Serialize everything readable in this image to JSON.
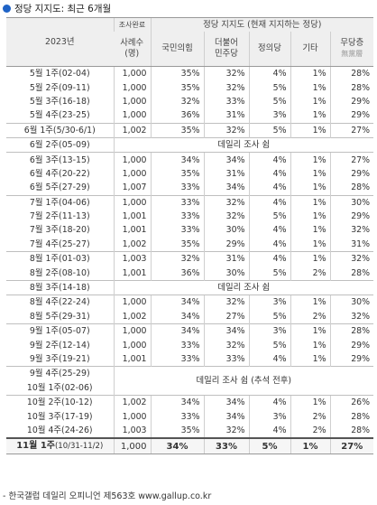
{
  "title": "정당 지지도: 최근 6개월",
  "header": {
    "year": "2023년",
    "sample_top": "조사완료",
    "sample_main": "사례수",
    "sample_unit": "(명)",
    "group": "정당 지지도 (현재 지지하는 정당)",
    "cols": [
      "국민의힘",
      "더불어\n민주당",
      "정의당",
      "기타",
      "무당층"
    ],
    "no_party_hanja": "無黨層"
  },
  "rows": [
    {
      "label": "5월 1주(02-04)",
      "n": "1,000",
      "ppp": "35%",
      "dp": "32%",
      "jp": "4%",
      "etc": "1%",
      "none": "28%",
      "bt": true
    },
    {
      "label": "5월 2주(09-11)",
      "n": "1,000",
      "ppp": "35%",
      "dp": "32%",
      "jp": "5%",
      "etc": "1%",
      "none": "28%"
    },
    {
      "label": "5월 3주(16-18)",
      "n": "1,000",
      "ppp": "32%",
      "dp": "33%",
      "jp": "5%",
      "etc": "1%",
      "none": "29%"
    },
    {
      "label": "5월 4주(23-25)",
      "n": "1,000",
      "ppp": "36%",
      "dp": "31%",
      "jp": "3%",
      "etc": "1%",
      "none": "29%"
    },
    {
      "label": "6월 1주(5/30-6/1)",
      "n": "1,002",
      "ppp": "35%",
      "dp": "32%",
      "jp": "5%",
      "etc": "1%",
      "none": "27%",
      "bt": true
    },
    {
      "label": "6월 2주(05-09)",
      "span": "데일리 조사 쉼",
      "bt": true
    },
    {
      "label": "6월 3주(13-15)",
      "n": "1,000",
      "ppp": "34%",
      "dp": "34%",
      "jp": "4%",
      "etc": "1%",
      "none": "27%",
      "bt": true
    },
    {
      "label": "6월 4주(20-22)",
      "n": "1,000",
      "ppp": "35%",
      "dp": "31%",
      "jp": "4%",
      "etc": "1%",
      "none": "29%"
    },
    {
      "label": "6월 5주(27-29)",
      "n": "1,007",
      "ppp": "33%",
      "dp": "34%",
      "jp": "4%",
      "etc": "1%",
      "none": "28%"
    },
    {
      "label": "7월 1주(04-06)",
      "n": "1,000",
      "ppp": "33%",
      "dp": "32%",
      "jp": "4%",
      "etc": "1%",
      "none": "30%",
      "bt": true
    },
    {
      "label": "7월 2주(11-13)",
      "n": "1,001",
      "ppp": "33%",
      "dp": "32%",
      "jp": "5%",
      "etc": "1%",
      "none": "29%"
    },
    {
      "label": "7월 3주(18-20)",
      "n": "1,001",
      "ppp": "33%",
      "dp": "30%",
      "jp": "4%",
      "etc": "1%",
      "none": "32%"
    },
    {
      "label": "7월 4주(25-27)",
      "n": "1,002",
      "ppp": "35%",
      "dp": "29%",
      "jp": "4%",
      "etc": "1%",
      "none": "31%"
    },
    {
      "label": "8월 1주(01-03)",
      "n": "1,003",
      "ppp": "32%",
      "dp": "31%",
      "jp": "4%",
      "etc": "1%",
      "none": "32%",
      "bt": true
    },
    {
      "label": "8월 2주(08-10)",
      "n": "1,001",
      "ppp": "36%",
      "dp": "30%",
      "jp": "5%",
      "etc": "2%",
      "none": "28%"
    },
    {
      "label": "8월 3주(14-18)",
      "span": "데일리 조사 쉼",
      "bt": true
    },
    {
      "label": "8월 4주(22-24)",
      "n": "1,000",
      "ppp": "34%",
      "dp": "32%",
      "jp": "3%",
      "etc": "1%",
      "none": "30%",
      "bt": true
    },
    {
      "label": "8월 5주(29-31)",
      "n": "1,002",
      "ppp": "34%",
      "dp": "27%",
      "jp": "5%",
      "etc": "2%",
      "none": "32%"
    },
    {
      "label": "9월 1주(05-07)",
      "n": "1,000",
      "ppp": "34%",
      "dp": "34%",
      "jp": "3%",
      "etc": "1%",
      "none": "28%",
      "bt": true
    },
    {
      "label": "9월 2주(12-14)",
      "n": "1,000",
      "ppp": "33%",
      "dp": "32%",
      "jp": "5%",
      "etc": "1%",
      "none": "29%"
    },
    {
      "label": "9월 3주(19-21)",
      "n": "1,001",
      "ppp": "33%",
      "dp": "33%",
      "jp": "4%",
      "etc": "1%",
      "none": "29%"
    },
    {
      "label": "9월 4주(25-29)",
      "span": "데일리 조사 쉼 (추석 전후)",
      "rowspan": 2,
      "bt": true
    },
    {
      "label": "10월 1주(02-06)",
      "skip": true
    },
    {
      "label": "10월 2주(10-12)",
      "n": "1,002",
      "ppp": "34%",
      "dp": "34%",
      "jp": "4%",
      "etc": "1%",
      "none": "26%",
      "bt": true
    },
    {
      "label": "10월 3주(17-19)",
      "n": "1,000",
      "ppp": "33%",
      "dp": "34%",
      "jp": "3%",
      "etc": "2%",
      "none": "28%"
    },
    {
      "label": "10월 4주(24-26)",
      "n": "1,003",
      "ppp": "35%",
      "dp": "32%",
      "jp": "4%",
      "etc": "2%",
      "none": "28%"
    }
  ],
  "latest": {
    "label_bold": "11월 1주",
    "label_rest": "(10/31-11/2)",
    "n": "1,000",
    "ppp": "34%",
    "dp": "33%",
    "jp": "5%",
    "etc": "1%",
    "none": "27%"
  },
  "footer": "- 한국갤럽 데일리 오피니언 제563호 www.gallup.co.kr",
  "colors": {
    "bullet": "#1f63c6",
    "header_bg": "#efefef"
  }
}
